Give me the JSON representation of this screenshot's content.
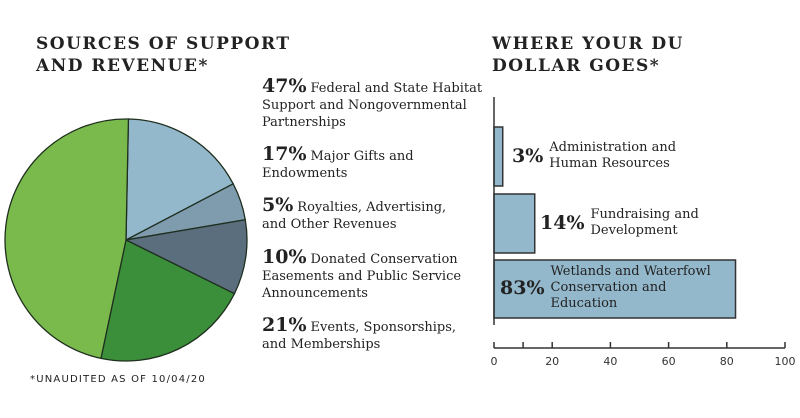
{
  "chart_data": [
    {
      "type": "pie",
      "title": "SOURCES OF SUPPORT AND REVENUE*",
      "title_lines": [
        "SOURCES OF SUPPORT",
        "AND REVENUE*"
      ],
      "slices": [
        {
          "pct_label": "17%",
          "value": 17,
          "label": "Major Gifts and Endowments",
          "color": "#93b7cb"
        },
        {
          "pct_label": "5%",
          "value": 5,
          "label": "Royalties, Advertising, and Other Revenues",
          "color": "#7f9caf"
        },
        {
          "pct_label": "10%",
          "value": 10,
          "label": "Donated Conservation Easements and Public Service Announcements",
          "color": "#5a6e7e"
        },
        {
          "pct_label": "21%",
          "value": 21,
          "label": "Events, Sponsorships, and Memberships",
          "color": "#3b8f3a"
        },
        {
          "pct_label": "47%",
          "value": 47,
          "label": "Federal and State Habitat Support and Nongovernmental Partnerships",
          "color": "#7aba4c"
        }
      ],
      "legend_order": [
        4,
        0,
        1,
        2,
        3
      ],
      "footnote": "*UNAUDITED AS OF 10/04/20"
    },
    {
      "type": "bar",
      "orientation": "horizontal",
      "title": "WHERE YOUR DU DOLLAR GOES*",
      "title_lines": [
        "WHERE YOUR DU",
        "DOLLAR GOES*"
      ],
      "categories": [
        "Administration and Human Resources",
        "Fundraising and Development",
        "Wetlands and Waterfowl Conservation and Education"
      ],
      "values": [
        3,
        14,
        83
      ],
      "value_labels": [
        "3%",
        "14%",
        "83%"
      ],
      "bar_color": "#93b7cb",
      "xlim": [
        0,
        100
      ],
      "xticks": [
        0,
        20,
        40,
        60,
        80,
        100
      ],
      "minor_ticks": [
        10
      ]
    }
  ]
}
